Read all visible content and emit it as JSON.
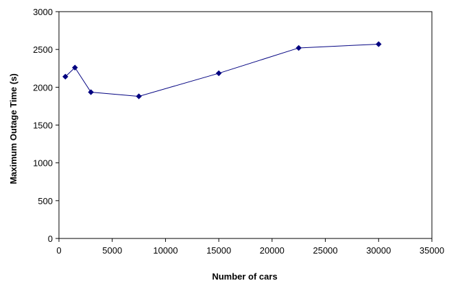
{
  "chart_data": {
    "type": "line",
    "title": "",
    "xlabel": "Number of cars",
    "ylabel": "Maximum Outage Time (s)",
    "xlim": [
      0,
      35000
    ],
    "ylim": [
      0,
      3000
    ],
    "xticks": [
      0,
      5000,
      10000,
      15000,
      20000,
      25000,
      30000,
      35000
    ],
    "yticks": [
      0,
      500,
      1000,
      1500,
      2000,
      2500,
      3000
    ],
    "grid": false,
    "legend": "none",
    "series": [
      {
        "color": "#000080",
        "marker": "diamond",
        "x": [
          600,
          1500,
          3000,
          7500,
          15000,
          22500,
          30000
        ],
        "y": [
          2140,
          2260,
          1935,
          1880,
          2185,
          2520,
          2570
        ]
      }
    ]
  }
}
